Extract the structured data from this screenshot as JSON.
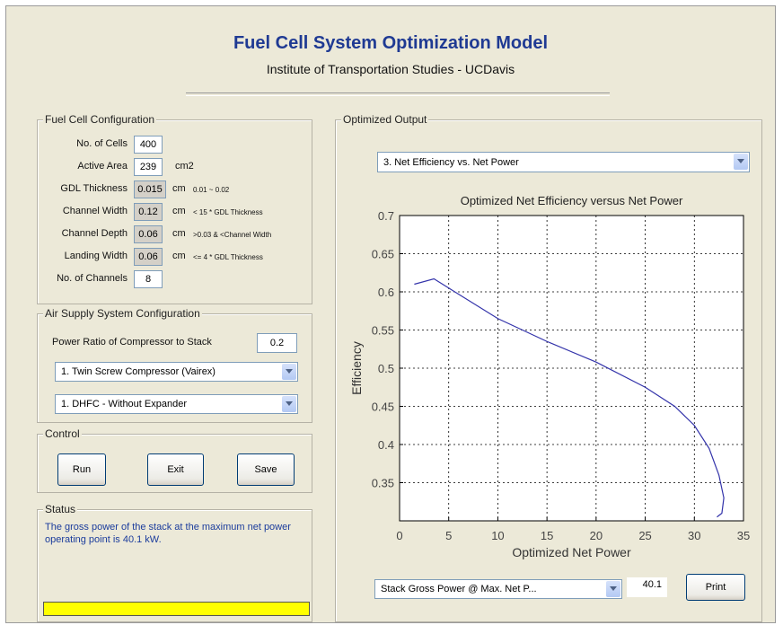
{
  "header": {
    "title": "Fuel Cell System Optimization Model",
    "subtitle": "Institute of Transportation Studies - UCDavis"
  },
  "fuel_cell_configuration": {
    "title": "Fuel Cell Configuration",
    "fields": [
      {
        "label": "No. of Cells",
        "value": "400",
        "editable": true
      },
      {
        "label": "Active Area",
        "value": "239",
        "unit": "cm2",
        "editable": true
      },
      {
        "label": "GDL Thickness",
        "value": "0.015",
        "unit": "cm",
        "note": "0.01 ~ 0.02",
        "editable": false
      },
      {
        "label": "Channel Width",
        "value": "0.12",
        "unit": "cm",
        "note": "< 15 * GDL Thickness",
        "editable": false
      },
      {
        "label": "Channel Depth",
        "value": "0.06",
        "unit": "cm",
        "note": ">0.03 & <Channel Width",
        "editable": false
      },
      {
        "label": "Landing Width",
        "value": "0.06",
        "unit": "cm",
        "note": "<= 4 * GDL Thickness",
        "editable": false
      },
      {
        "label": "No. of Channels",
        "value": "8",
        "editable": true
      }
    ]
  },
  "air_supply": {
    "title": "Air Supply System Configuration",
    "ratio_label": "Power Ratio of Compressor to Stack",
    "ratio_value": "0.2",
    "compressor": "1. Twin Screw Compressor (Vairex)",
    "expander": "1. DHFC - Without Expander"
  },
  "control": {
    "title": "Control",
    "buttons": [
      "Run",
      "Exit",
      "Save"
    ]
  },
  "status": {
    "title": "Status",
    "message": "The gross power of the stack at the maximum net power operating point is 40.1 kW."
  },
  "output": {
    "title": "Optimized Output",
    "selector": "3. Net Efficiency  vs.  Net Power",
    "chart": {
      "type": "line",
      "title": "Optimized Net Efficiency versus Net Power",
      "x_label": "Optimized Net Power",
      "y_label": "Efficiency",
      "x": [
        1.5,
        3.5,
        5,
        10,
        15,
        20,
        25,
        28,
        30,
        31.5,
        32.5,
        33,
        32.8,
        32.3
      ],
      "values": [
        0.61,
        0.617,
        0.605,
        0.565,
        0.535,
        0.508,
        0.475,
        0.45,
        0.425,
        0.395,
        0.36,
        0.33,
        0.31,
        0.305
      ],
      "color": "#3333aa",
      "xlim": [
        0,
        35
      ],
      "ylim": [
        0.3,
        0.7
      ],
      "xticks": [
        0,
        5,
        10,
        15,
        20,
        25,
        30,
        35
      ],
      "yticks": [
        0.35,
        0.4,
        0.45,
        0.5,
        0.55,
        0.6,
        0.65,
        0.7
      ],
      "grid": true
    },
    "result_selector": "Stack Gross Power @ Max. Net P...",
    "result_value": "40.1",
    "print_button": "Print"
  }
}
